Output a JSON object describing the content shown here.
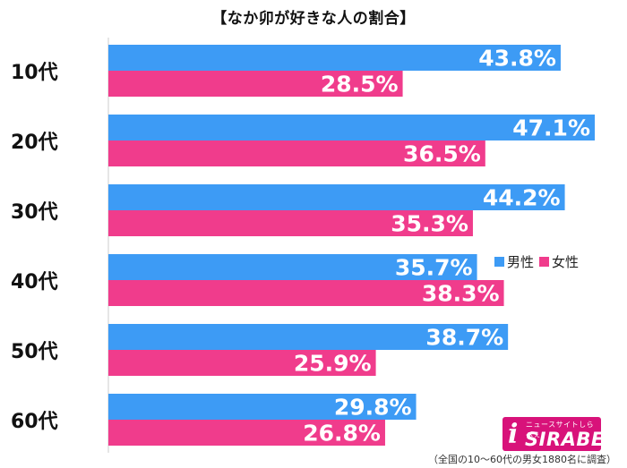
{
  "chart_data": {
    "type": "bar",
    "orientation": "horizontal",
    "title": "【なか卯が好きな人の割合】",
    "categories": [
      "10代",
      "20代",
      "30代",
      "40代",
      "50代",
      "60代"
    ],
    "series": [
      {
        "name": "男性",
        "color": "#3d9bf5",
        "values": [
          43.8,
          47.1,
          44.2,
          35.7,
          38.7,
          29.8
        ]
      },
      {
        "name": "女性",
        "color": "#f03c8c",
        "values": [
          28.5,
          36.5,
          35.3,
          38.3,
          25.9,
          26.8
        ]
      }
    ],
    "value_suffix": "%",
    "xlim": [
      0,
      47.1
    ],
    "legend_position": "right"
  },
  "logo": {
    "subtitle": "ニュースサイトしらべぇ",
    "name": "SIRABEE",
    "mark": "i"
  },
  "footnote": "（全国の10〜60代の男女1880名に調査）"
}
